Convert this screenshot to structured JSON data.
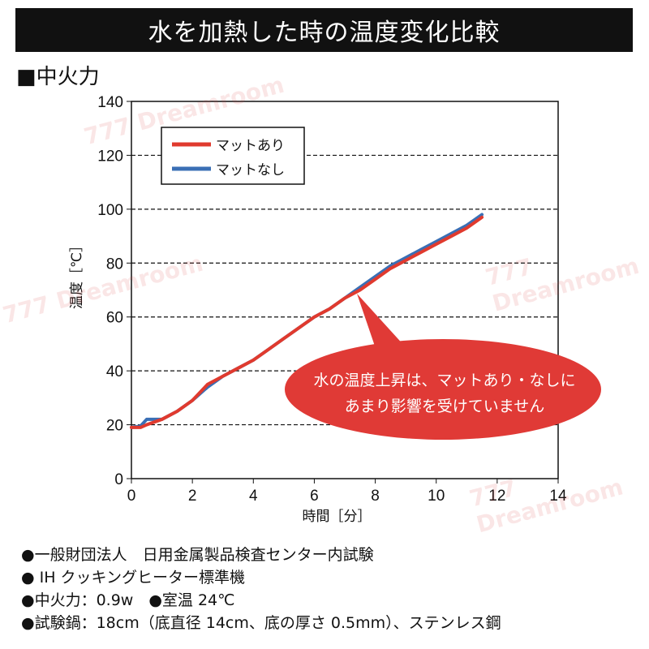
{
  "title": "水を加熱した時の温度変化比較",
  "subtitle": "■中火力",
  "chart_data": {
    "type": "line",
    "title": "水を加熱した時の温度変化比較",
    "xlabel": "時間［分］",
    "ylabel": "温度［℃］",
    "xlim": [
      0,
      14
    ],
    "ylim": [
      0,
      140
    ],
    "xticks": [
      0,
      2,
      4,
      6,
      8,
      10,
      12,
      14
    ],
    "yticks": [
      0,
      20,
      40,
      60,
      80,
      100,
      120,
      140
    ],
    "grid": "horizontal dashed",
    "legend_position": "top-left",
    "series": [
      {
        "name": "マットなし",
        "color": "#3a6fb5",
        "x": [
          0,
          0.3,
          0.5,
          1,
          1.5,
          2,
          2.5,
          3,
          3.5,
          4,
          4.5,
          5,
          5.5,
          6,
          6.5,
          7,
          7.5,
          8,
          8.5,
          9,
          9.5,
          10,
          10.5,
          11,
          11.5
        ],
        "y": [
          19,
          19.5,
          22,
          22,
          25,
          29,
          34,
          38,
          41,
          44,
          48,
          52,
          56,
          60,
          63,
          67,
          71,
          75,
          79,
          82,
          85,
          88,
          91,
          94,
          98
        ]
      },
      {
        "name": "マットあり",
        "color": "#e03a2e",
        "x": [
          0,
          0.3,
          0.5,
          1,
          1.5,
          2,
          2.5,
          3,
          3.5,
          4,
          4.5,
          5,
          5.5,
          6,
          6.5,
          7,
          7.5,
          8,
          8.5,
          9,
          9.5,
          10,
          10.5,
          11,
          11.5
        ],
        "y": [
          19,
          19,
          20,
          22,
          25,
          29,
          35,
          38,
          41,
          44,
          48,
          52,
          56,
          60,
          63,
          67,
          70,
          74,
          78,
          81,
          84,
          87,
          90,
          93,
          97
        ]
      }
    ],
    "annotation": {
      "lines": [
        "水の温度上昇は、マットあり・なしに",
        "あまり影響を受けていません"
      ],
      "color": "#e03a36"
    }
  },
  "notes": [
    "●一般財団法人　日用金属製品検査センター内試験",
    "● IH クッキングヒーター標準機",
    "●中火力：0.9w　●室温 24℃",
    "●試験鍋：18cm（底直径 14cm、底の厚さ 0.5mm）、ステンレス鋼"
  ],
  "watermark": "777 Dreamroom"
}
